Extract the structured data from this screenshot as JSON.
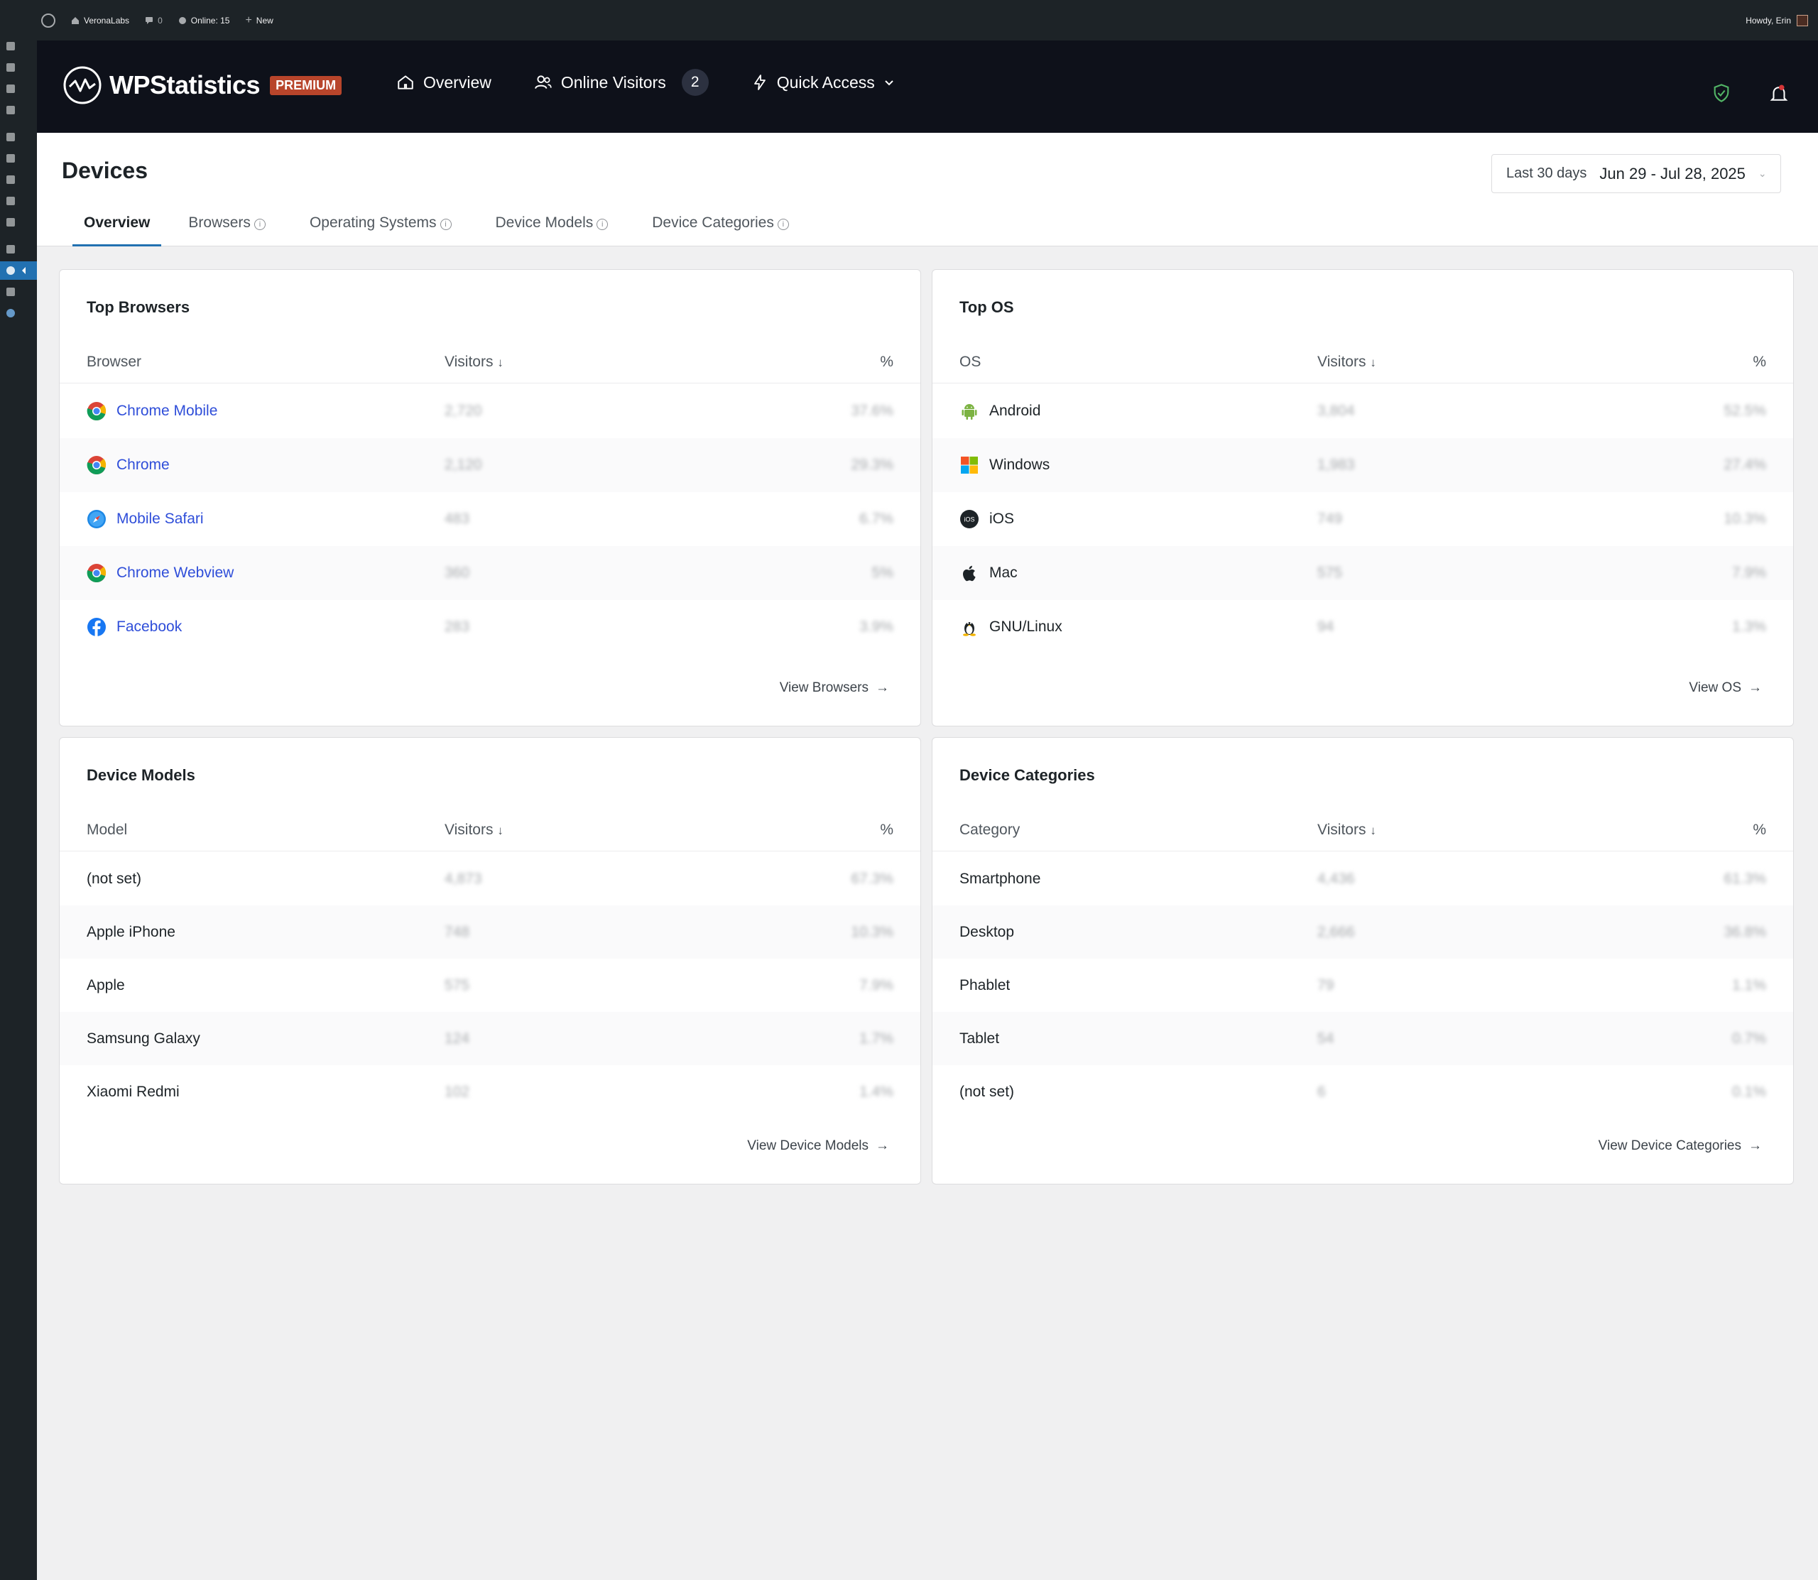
{
  "adminbar": {
    "site_name": "VeronaLabs",
    "comments_count": "0",
    "online": "Online: 15",
    "new_label": "New",
    "howdy": "Howdy, Erin"
  },
  "header": {
    "brand": "WPStatistics",
    "badge": "PREMIUM",
    "nav": {
      "overview": "Overview",
      "online_visitors": "Online Visitors",
      "online_count": "2",
      "quick_access": "Quick Access"
    }
  },
  "page": {
    "title": "Devices",
    "date_label": "Last 30 days",
    "date_range": "Jun 29 - Jul 28, 2025",
    "tabs": [
      "Overview",
      "Browsers",
      "Operating Systems",
      "Device Models",
      "Device Categories"
    ]
  },
  "browsers": {
    "title": "Top Browsers",
    "headers": {
      "col1": "Browser",
      "col2": "Visitors",
      "col3": "%"
    },
    "rows": [
      {
        "name": "Chrome Mobile",
        "visitors": "2,720",
        "pct": "37.6%",
        "icon": "chrome-icon"
      },
      {
        "name": "Chrome",
        "visitors": "2,120",
        "pct": "29.3%",
        "icon": "chrome-icon"
      },
      {
        "name": "Mobile Safari",
        "visitors": "483",
        "pct": "6.7%",
        "icon": "safari-icon"
      },
      {
        "name": "Chrome Webview",
        "visitors": "360",
        "pct": "5%",
        "icon": "chrome-icon"
      },
      {
        "name": "Facebook",
        "visitors": "283",
        "pct": "3.9%",
        "icon": "facebook-icon"
      }
    ],
    "footer": "View Browsers"
  },
  "os": {
    "title": "Top OS",
    "headers": {
      "col1": "OS",
      "col2": "Visitors",
      "col3": "%"
    },
    "rows": [
      {
        "name": "Android",
        "visitors": "3,804",
        "pct": "52.5%",
        "icon": "android-icon"
      },
      {
        "name": "Windows",
        "visitors": "1,983",
        "pct": "27.4%",
        "icon": "windows-icon"
      },
      {
        "name": "iOS",
        "visitors": "749",
        "pct": "10.3%",
        "icon": "ios-icon"
      },
      {
        "name": "Mac",
        "visitors": "575",
        "pct": "7.9%",
        "icon": "apple-icon"
      },
      {
        "name": "GNU/Linux",
        "visitors": "94",
        "pct": "1.3%",
        "icon": "linux-icon"
      }
    ],
    "footer": "View OS"
  },
  "models": {
    "title": "Device Models",
    "headers": {
      "col1": "Model",
      "col2": "Visitors",
      "col3": "%"
    },
    "rows": [
      {
        "name": "(not set)",
        "visitors": "4,873",
        "pct": "67.3%"
      },
      {
        "name": "Apple iPhone",
        "visitors": "748",
        "pct": "10.3%"
      },
      {
        "name": "Apple",
        "visitors": "575",
        "pct": "7.9%"
      },
      {
        "name": "Samsung Galaxy",
        "visitors": "124",
        "pct": "1.7%"
      },
      {
        "name": "Xiaomi Redmi",
        "visitors": "102",
        "pct": "1.4%"
      }
    ],
    "footer": "View Device Models"
  },
  "categories": {
    "title": "Device Categories",
    "headers": {
      "col1": "Category",
      "col2": "Visitors",
      "col3": "%"
    },
    "rows": [
      {
        "name": "Smartphone",
        "visitors": "4,436",
        "pct": "61.3%"
      },
      {
        "name": "Desktop",
        "visitors": "2,666",
        "pct": "36.8%"
      },
      {
        "name": "Phablet",
        "visitors": "79",
        "pct": "1.1%"
      },
      {
        "name": "Tablet",
        "visitors": "54",
        "pct": "0.7%"
      },
      {
        "name": "(not set)",
        "visitors": "6",
        "pct": "0.1%"
      }
    ],
    "footer": "View Device Categories"
  },
  "colors": {
    "accent": "#2271b1",
    "link": "#2f4ed9",
    "header_bg": "#0e111a",
    "premium_badge": "#b8452b"
  }
}
